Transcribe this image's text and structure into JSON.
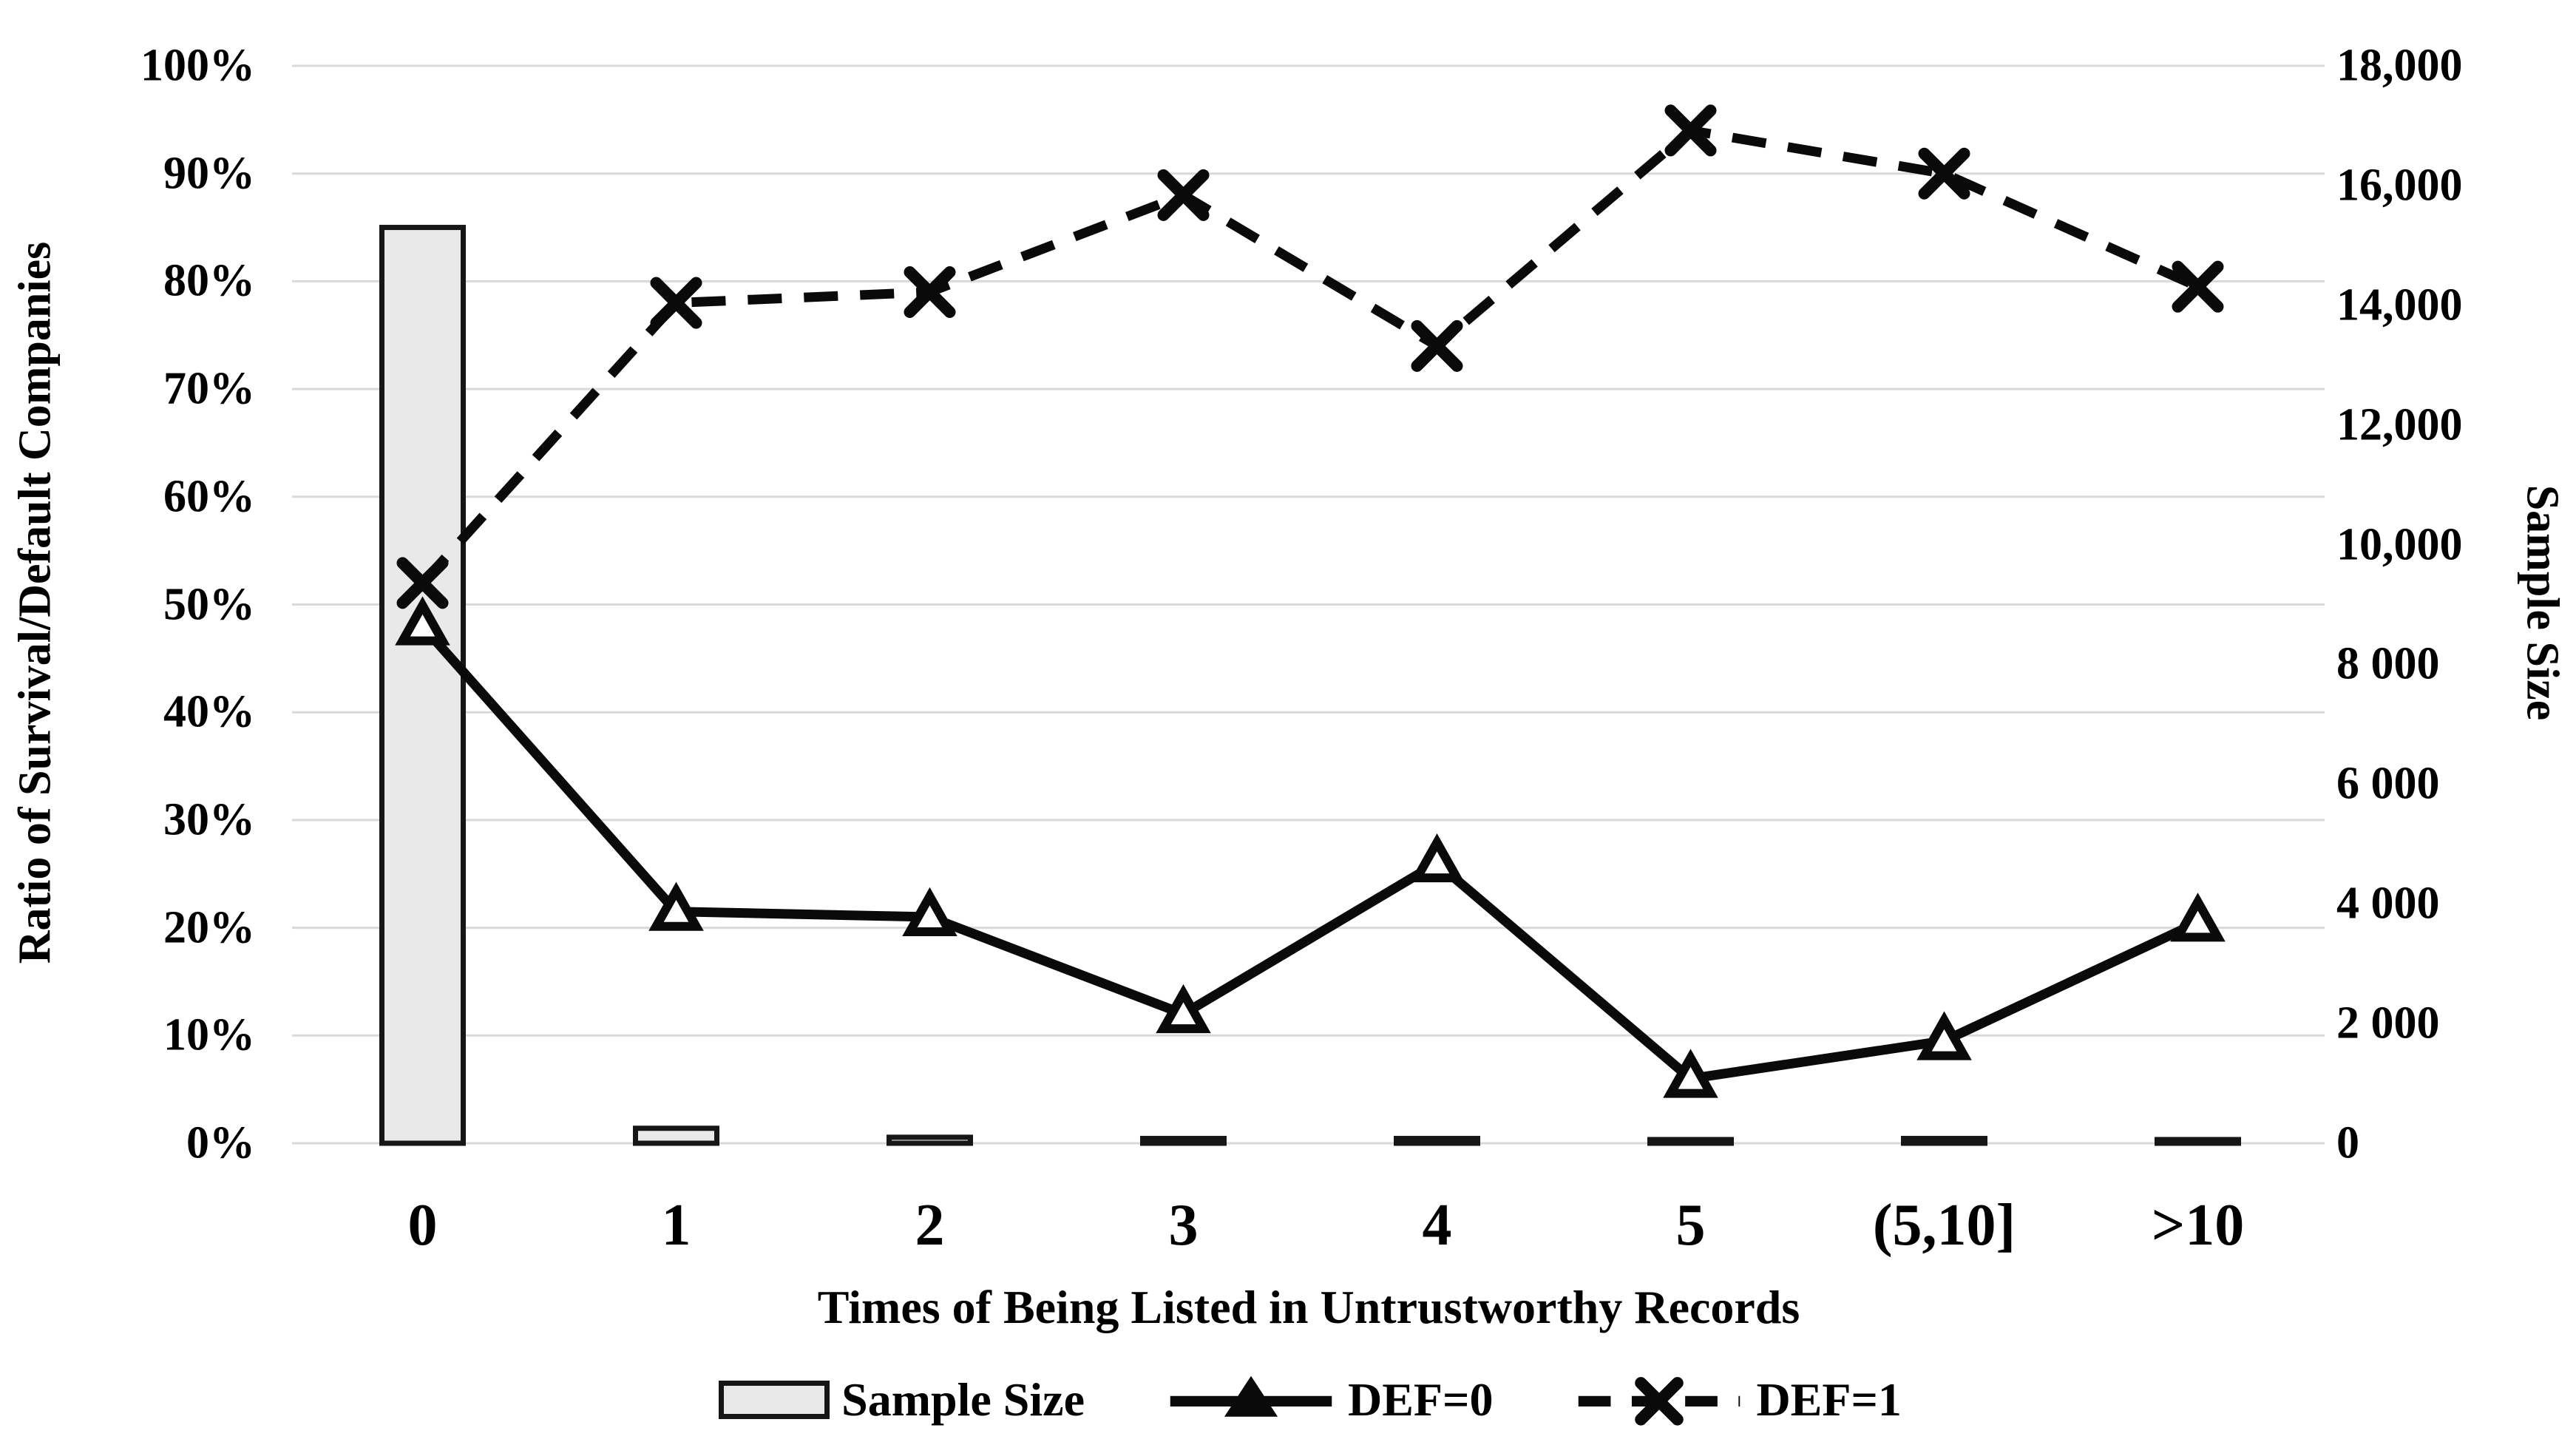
{
  "chart_data": {
    "type": "combo-bar-line",
    "categories": [
      "0",
      "1",
      "2",
      "3",
      "4",
      "5",
      "(5,10]",
      ">10"
    ],
    "x_axis": {
      "label": "Times of Being Listed in Untrustworthy Records"
    },
    "left_axis": {
      "label": "Ratio of Survival/Default Companies",
      "min": 0,
      "max": 100,
      "unit": "%",
      "ticks": [
        {
          "label": "100%",
          "value": 100
        },
        {
          "label": "90%",
          "value": 90
        },
        {
          "label": "80%",
          "value": 80
        },
        {
          "label": "70%",
          "value": 70
        },
        {
          "label": "60%",
          "value": 60
        },
        {
          "label": "50%",
          "value": 50
        },
        {
          "label": "40%",
          "value": 40
        },
        {
          "label": "30%",
          "value": 30
        },
        {
          "label": "20%",
          "value": 20
        },
        {
          "label": "10%",
          "value": 10
        },
        {
          "label": "0%",
          "value": 0
        }
      ]
    },
    "right_axis": {
      "label": "Sample Size",
      "min": 0,
      "max": 18000,
      "ticks": [
        {
          "label": "18,000",
          "value": 18000
        },
        {
          "label": "16,000",
          "value": 16000
        },
        {
          "label": "14,000",
          "value": 14000
        },
        {
          "label": "12,000",
          "value": 12000
        },
        {
          "label": "10,000",
          "value": 10000
        },
        {
          "label": "8 000",
          "value": 8000
        },
        {
          "label": "6 000",
          "value": 6000
        },
        {
          "label": "4 000",
          "value": 4000
        },
        {
          "label": "2 000",
          "value": 2000
        },
        {
          "label": "0",
          "value": 0
        }
      ]
    },
    "series": [
      {
        "name": "Sample Size",
        "type": "bar",
        "axis": "right",
        "values": [
          15300,
          250,
          100,
          80,
          80,
          60,
          80,
          60
        ]
      },
      {
        "name": "DEF=0",
        "type": "line",
        "line_style": "solid",
        "marker": "triangle",
        "axis": "left",
        "values": [
          48,
          21.5,
          21,
          12,
          26,
          6,
          9.5,
          20.5
        ]
      },
      {
        "name": "DEF=1",
        "type": "line",
        "line_style": "dashed",
        "marker": "x",
        "axis": "left",
        "values": [
          52,
          78,
          79,
          88,
          74,
          94,
          90,
          79.5
        ]
      }
    ],
    "legend": {
      "position": "bottom",
      "items": [
        {
          "label": "Sample Size"
        },
        {
          "label": "DEF=0"
        },
        {
          "label": "DEF=1"
        }
      ]
    },
    "grid": true,
    "colors": {
      "line": "#0a0a0a",
      "bar_fill": "#e9e9e9",
      "bar_border": "#161616",
      "gridline": "#d9d9d9",
      "text": "#000000",
      "background": "#ffffff"
    }
  }
}
